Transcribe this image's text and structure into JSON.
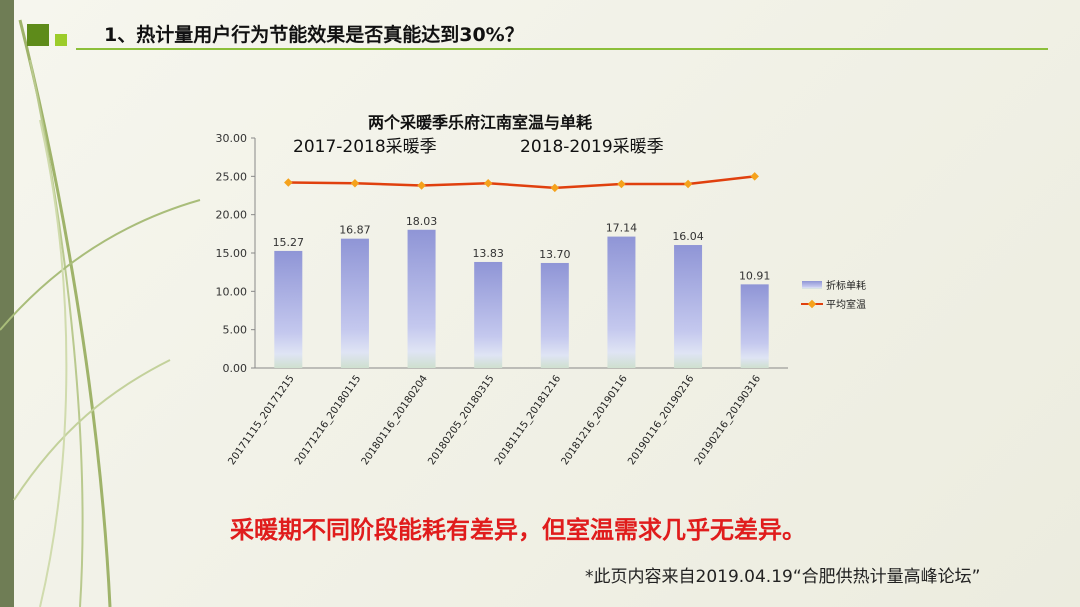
{
  "slide": {
    "title": "1、热计量用户行为节能效果是否真能达到30%？",
    "conclusion": "采暖期不同阶段能耗有差异，但室温需求几乎无差异。",
    "source": "*此页内容来自2019.04.19“合肥供热计量高峰论坛”"
  },
  "colors": {
    "bar_top": "#8f95d6",
    "bar_bottom": "#cfe0cf",
    "line": "#e0400e",
    "marker": "#f5a21c",
    "accent_green": "#8cbf3a",
    "conclusion_red": "#e01c1c"
  },
  "chart_data": {
    "type": "bar",
    "title": "两个采暖季乐府江南室温与单耗",
    "annotations": [
      "2017-2018采暖季",
      "2018-2019采暖季"
    ],
    "categories": [
      "20171115_20171215",
      "20171216_20180115",
      "20180116_20180204",
      "20180205_20180315",
      "20181115_20181216",
      "20181216_20190116",
      "20190116_20190216",
      "20190216_20190316"
    ],
    "series": [
      {
        "name": "折标单耗",
        "type": "bar",
        "values": [
          15.27,
          16.87,
          18.03,
          13.83,
          13.7,
          17.14,
          16.04,
          10.91
        ],
        "labels": [
          "15.27",
          "16.87",
          "18.03",
          "13.83",
          "13.70",
          "17.14",
          "16.04",
          "10.91"
        ]
      },
      {
        "name": "平均室温",
        "type": "line",
        "values": [
          24.2,
          24.1,
          23.8,
          24.1,
          23.5,
          24.0,
          24.0,
          25.0
        ]
      }
    ],
    "ylim": [
      0,
      30
    ],
    "yticks": [
      "0.00",
      "5.00",
      "10.00",
      "15.00",
      "20.00",
      "25.00",
      "30.00"
    ],
    "grid": false,
    "legend": "right"
  }
}
